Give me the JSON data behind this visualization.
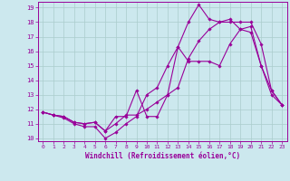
{
  "xlabel": "Windchill (Refroidissement éolien,°C)",
  "xlim": [
    -0.5,
    23.5
  ],
  "ylim": [
    9.8,
    19.4
  ],
  "xticks": [
    0,
    1,
    2,
    3,
    4,
    5,
    6,
    7,
    8,
    9,
    10,
    11,
    12,
    13,
    14,
    15,
    16,
    17,
    18,
    19,
    20,
    21,
    22,
    23
  ],
  "yticks": [
    10,
    11,
    12,
    13,
    14,
    15,
    16,
    17,
    18,
    19
  ],
  "line_color": "#990099",
  "bg_color": "#cce8ee",
  "grid_color": "#aacccc",
  "line1_y": [
    11.8,
    11.6,
    11.5,
    11.1,
    11.0,
    11.1,
    10.5,
    11.0,
    11.6,
    11.6,
    12.0,
    12.5,
    13.0,
    13.5,
    15.5,
    16.7,
    17.5,
    18.0,
    18.0,
    18.0,
    18.0,
    16.5,
    13.3,
    12.3
  ],
  "line2_y": [
    11.8,
    11.6,
    11.5,
    11.1,
    11.0,
    11.1,
    10.5,
    11.5,
    11.5,
    13.3,
    11.5,
    11.5,
    13.0,
    16.3,
    15.3,
    15.3,
    15.3,
    15.0,
    16.5,
    17.5,
    17.7,
    15.0,
    13.3,
    12.3
  ],
  "line3_y": [
    11.8,
    11.6,
    11.4,
    11.0,
    10.8,
    10.8,
    10.0,
    10.4,
    11.0,
    11.5,
    13.0,
    13.5,
    15.0,
    16.3,
    18.0,
    19.2,
    18.2,
    18.0,
    18.2,
    17.5,
    17.3,
    15.0,
    13.0,
    12.3
  ]
}
